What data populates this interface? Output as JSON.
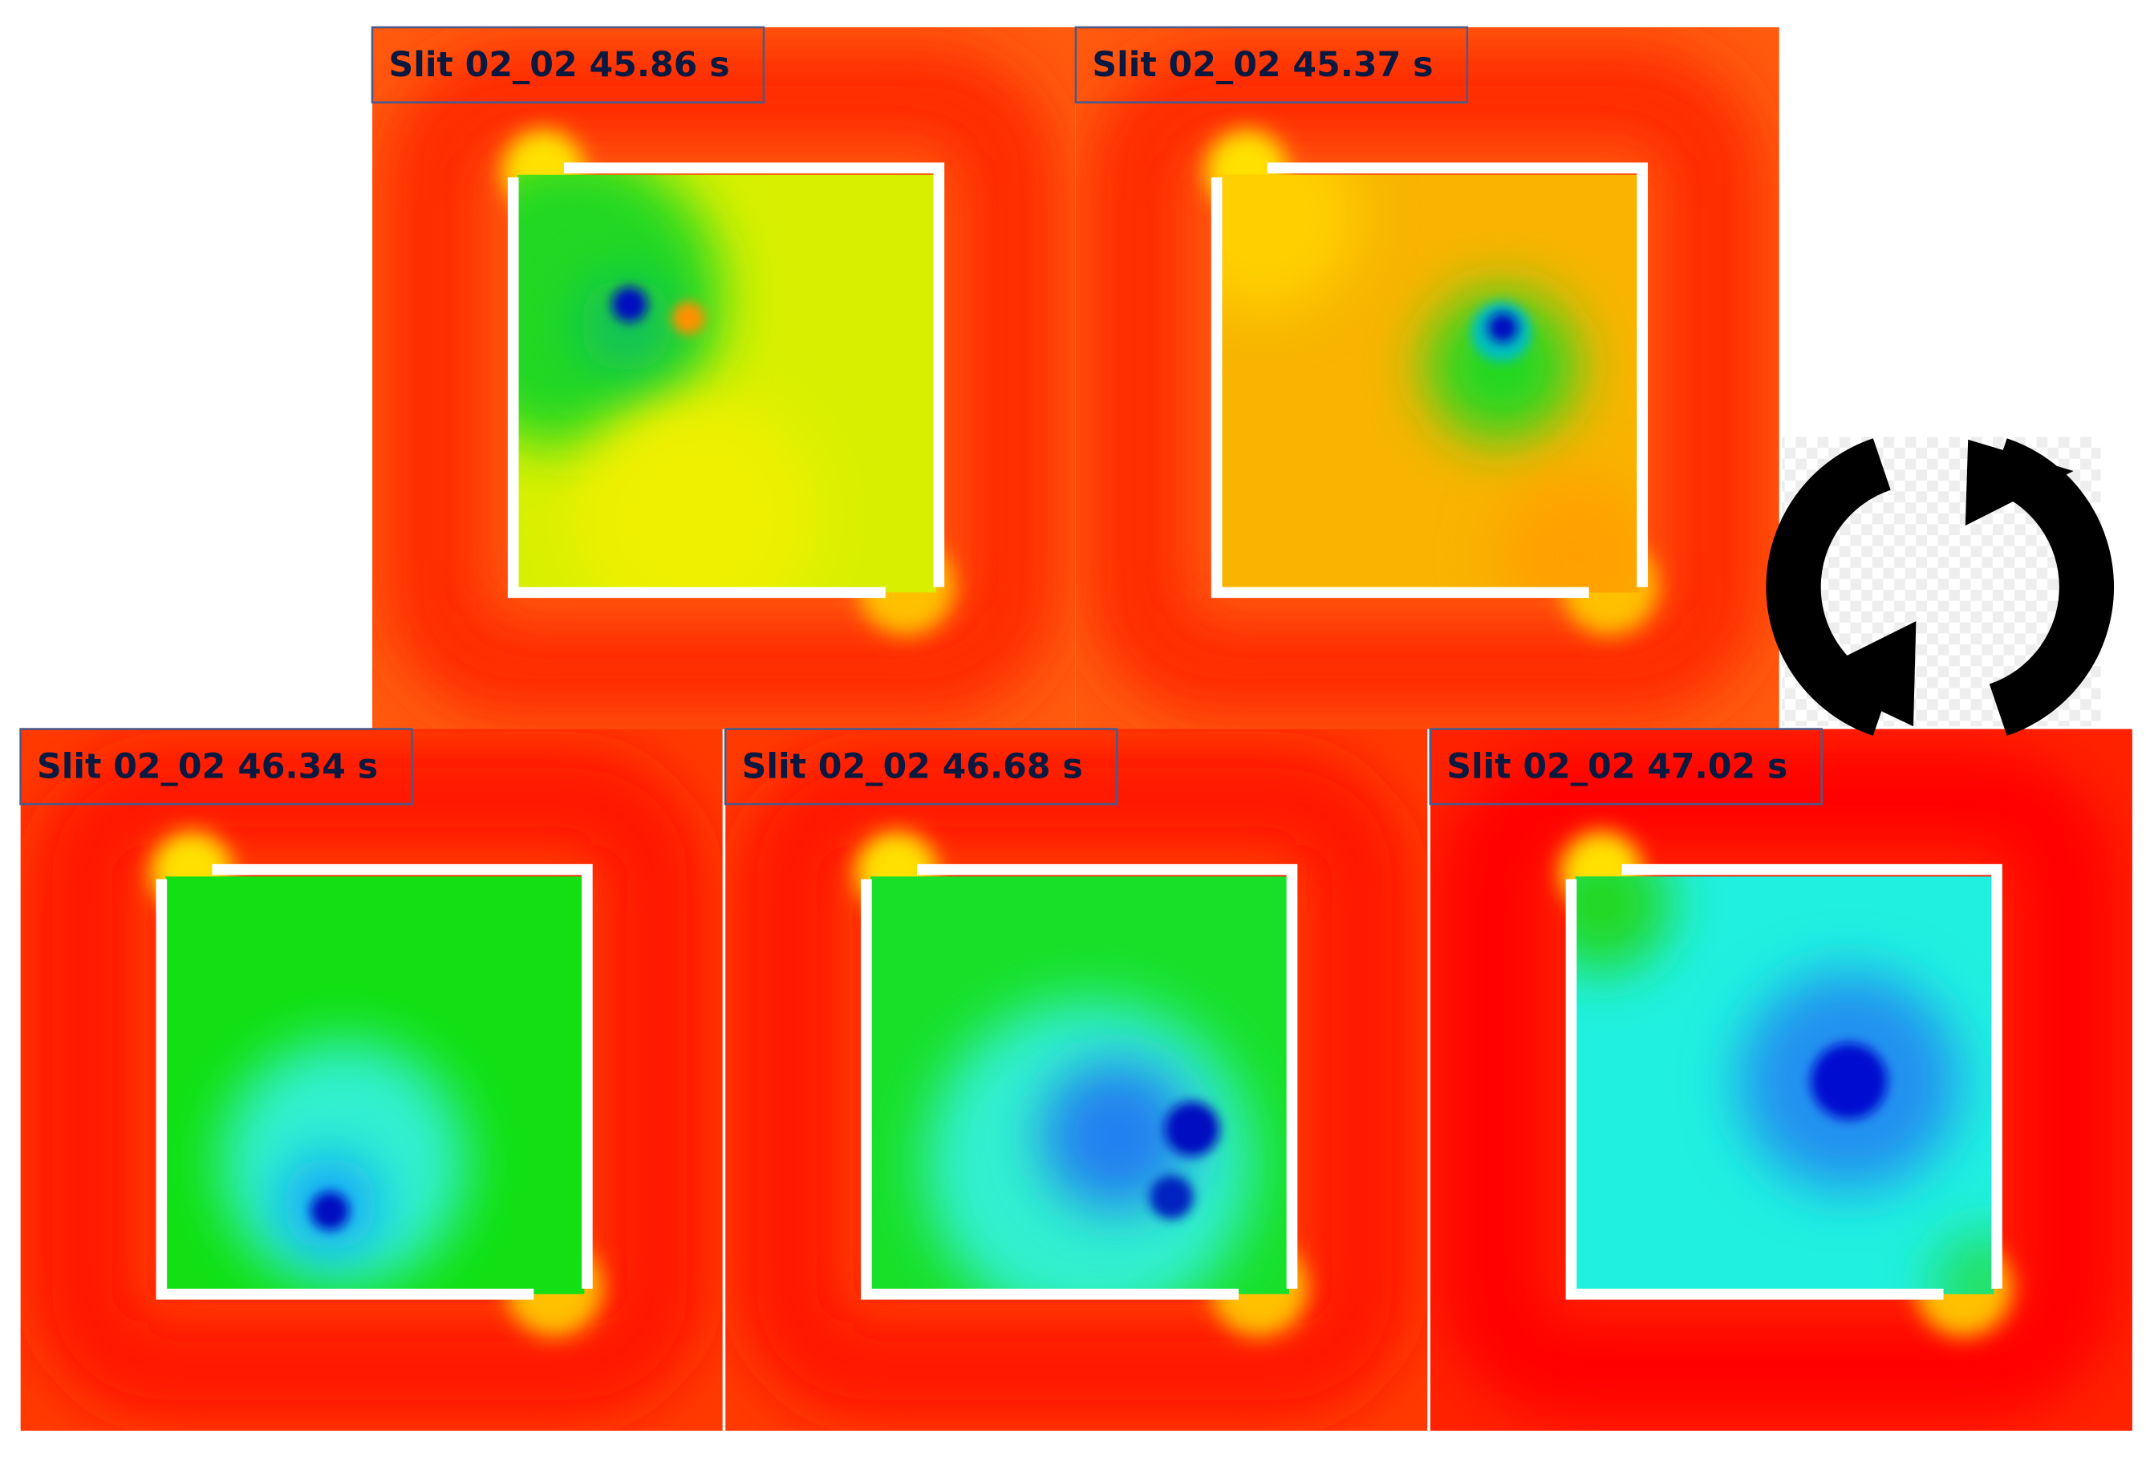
{
  "panels": [
    {
      "label": "Slit 02_02 45.86 s"
    },
    {
      "label": "Slit 02_02 45.37 s"
    },
    {
      "label": "Slit 02_02 46.34 s"
    },
    {
      "label": "Slit 02_02 46.68 s"
    },
    {
      "label": "Slit 02_02 47.02 s"
    }
  ]
}
